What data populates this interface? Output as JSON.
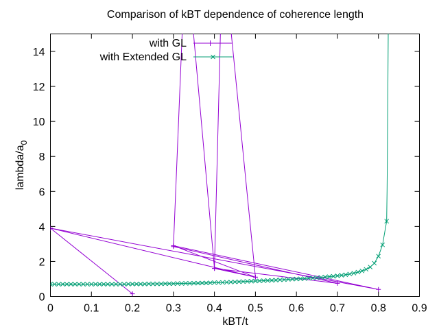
{
  "chart_data": {
    "type": "line",
    "title": "Comparison of kBT dependence of coherence length",
    "xlabel": "kBT/t",
    "ylabel_main": "lambda/a",
    "ylabel_sub": "0",
    "xlim": [
      0,
      0.9
    ],
    "ylim": [
      0,
      15
    ],
    "xticks": [
      "0",
      "0.1",
      "0.2",
      "0.3",
      "0.4",
      "0.5",
      "0.6",
      "0.7",
      "0.8",
      "0.9"
    ],
    "yticks": [
      "0",
      "2",
      "4",
      "6",
      "8",
      "10",
      "12",
      "14"
    ],
    "grid": false,
    "legend_position": "top-center",
    "series": [
      {
        "name": "with GL",
        "color": "#9400d3",
        "marker": "plus",
        "x": [
          0.2,
          0.0,
          0.8,
          0.3,
          0.5,
          0.42,
          0.4,
          0.33,
          0.3,
          0.7,
          0.4,
          0.5,
          0.0
        ],
        "y": [
          0.15,
          3.9,
          0.4,
          2.9,
          1.1,
          20,
          1.6,
          20,
          2.85,
          0.75,
          1.6,
          1.1,
          3.9
        ]
      },
      {
        "name": "with Extended GL",
        "color": "#009e73",
        "marker": "cross",
        "x": [
          0,
          0.01,
          0.02,
          0.03,
          0.04,
          0.05,
          0.06,
          0.07,
          0.08,
          0.09,
          0.1,
          0.11,
          0.12,
          0.13,
          0.14,
          0.15,
          0.16,
          0.17,
          0.18,
          0.19,
          0.2,
          0.21,
          0.22,
          0.23,
          0.24,
          0.25,
          0.26,
          0.27,
          0.28,
          0.29,
          0.3,
          0.31,
          0.32,
          0.33,
          0.34,
          0.35,
          0.36,
          0.37,
          0.38,
          0.39,
          0.4,
          0.41,
          0.42,
          0.43,
          0.44,
          0.45,
          0.46,
          0.47,
          0.48,
          0.49,
          0.5,
          0.51,
          0.52,
          0.53,
          0.54,
          0.55,
          0.56,
          0.57,
          0.58,
          0.59,
          0.6,
          0.61,
          0.62,
          0.63,
          0.64,
          0.65,
          0.66,
          0.67,
          0.68,
          0.69,
          0.7,
          0.71,
          0.72,
          0.73,
          0.74,
          0.75,
          0.76,
          0.77,
          0.78,
          0.79,
          0.8,
          0.81,
          0.82
        ],
        "y": [
          0.7,
          0.7,
          0.7,
          0.7,
          0.7,
          0.7,
          0.7,
          0.7,
          0.7,
          0.7,
          0.7,
          0.7,
          0.7,
          0.7,
          0.7,
          0.7,
          0.7,
          0.7,
          0.7,
          0.71,
          0.71,
          0.71,
          0.71,
          0.71,
          0.72,
          0.72,
          0.72,
          0.72,
          0.73,
          0.73,
          0.73,
          0.74,
          0.74,
          0.75,
          0.75,
          0.76,
          0.76,
          0.77,
          0.77,
          0.78,
          0.79,
          0.79,
          0.8,
          0.81,
          0.82,
          0.83,
          0.84,
          0.85,
          0.86,
          0.87,
          0.88,
          0.89,
          0.9,
          0.91,
          0.92,
          0.93,
          0.95,
          0.96,
          0.98,
          0.99,
          1.0,
          1.01,
          1.02,
          1.04,
          1.05,
          1.07,
          1.09,
          1.11,
          1.13,
          1.15,
          1.18,
          1.21,
          1.24,
          1.28,
          1.33,
          1.39,
          1.46,
          1.55,
          1.68,
          1.9,
          2.3,
          2.95,
          4.3
        ]
      }
    ],
    "blowup_curve_tail": {
      "series": "with Extended GL",
      "x": [
        0.82,
        0.821,
        0.822,
        0.823,
        0.824
      ],
      "y": [
        4.3,
        6.0,
        8.5,
        12.0,
        15.5
      ]
    }
  }
}
